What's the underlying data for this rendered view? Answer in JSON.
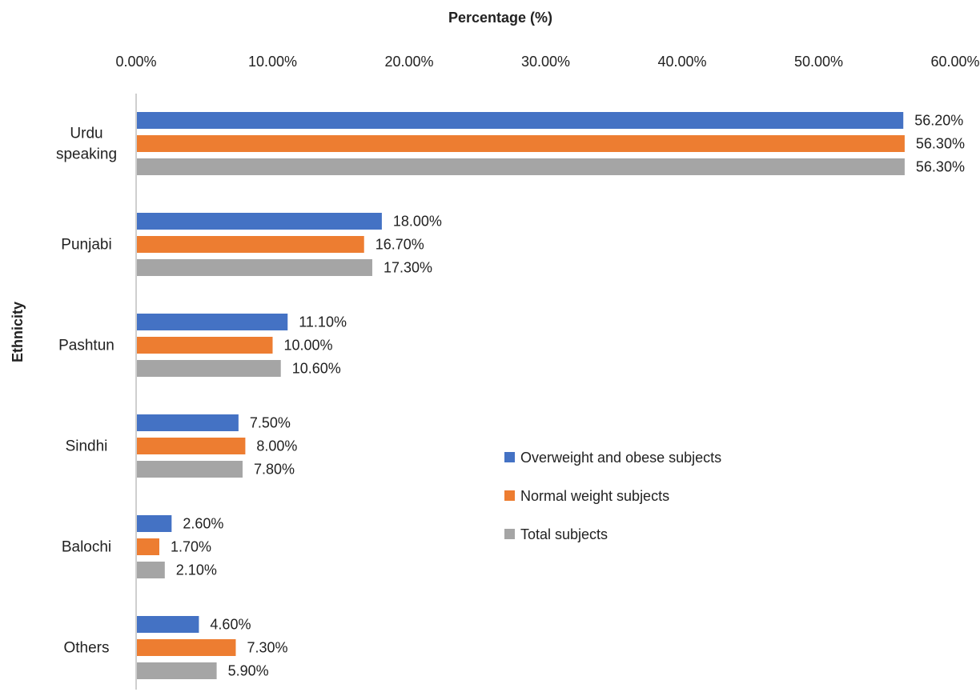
{
  "chart_data": {
    "type": "bar",
    "orientation": "horizontal",
    "xlabel": "Percentage (%)",
    "ylabel": "Ethnicity",
    "xlim": [
      0,
      60
    ],
    "x_axis_position": "top",
    "x_ticks": [
      "0.00%",
      "10.00%",
      "20.00%",
      "30.00%",
      "40.00%",
      "50.00%",
      "60.00%"
    ],
    "grid": false,
    "legend_position": "center-right",
    "categories": [
      [
        "Urdu",
        "speaking"
      ],
      [
        "Punjabi"
      ],
      [
        "Pashtun"
      ],
      [
        "Sindhi"
      ],
      [
        "Balochi"
      ],
      [
        "Others"
      ]
    ],
    "series": [
      {
        "name": "Overweight and obese subjects",
        "color": "#4472C4",
        "values": [
          56.2,
          18.0,
          11.1,
          7.5,
          2.6,
          4.6
        ],
        "labels": [
          "56.20%",
          "18.00%",
          "11.10%",
          "7.50%",
          "2.60%",
          "4.60%"
        ]
      },
      {
        "name": "Normal weight subjects",
        "color": "#ED7D31",
        "values": [
          56.3,
          16.7,
          10.0,
          8.0,
          1.7,
          7.3
        ],
        "labels": [
          "56.30%",
          "16.70%",
          "10.00%",
          "8.00%",
          "1.70%",
          "7.30%"
        ]
      },
      {
        "name": "Total subjects",
        "color": "#A5A5A5",
        "values": [
          56.3,
          17.3,
          10.6,
          7.8,
          2.1,
          5.9
        ],
        "labels": [
          "56.30%",
          "17.30%",
          "10.60%",
          "7.80%",
          "2.10%",
          "5.90%"
        ]
      }
    ]
  }
}
